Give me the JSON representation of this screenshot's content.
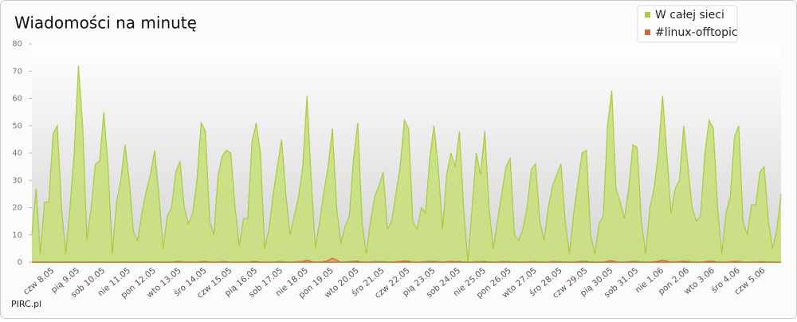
{
  "chart_data": {
    "type": "area",
    "title": "Wiadomości na minutę",
    "footer": "PIRC.pl",
    "ylim": [
      0,
      80
    ],
    "yticks": [
      0,
      10,
      20,
      30,
      40,
      50,
      60,
      70,
      80
    ],
    "legend": "top-right",
    "categories": [
      null,
      null,
      null,
      null,
      null,
      "czw 8.05",
      null,
      null,
      null,
      null,
      null,
      "pią 9.05",
      null,
      null,
      null,
      null,
      null,
      "sob 10.05",
      null,
      null,
      null,
      null,
      null,
      "nie 11.05",
      null,
      null,
      null,
      null,
      null,
      "pon 12.05",
      null,
      null,
      null,
      null,
      null,
      "wto 13.05",
      null,
      null,
      null,
      null,
      null,
      "śro 14.05",
      null,
      null,
      null,
      null,
      null,
      "czw 15.05",
      null,
      null,
      null,
      null,
      null,
      "pią 16.05",
      null,
      null,
      null,
      null,
      null,
      "sob 17.05",
      null,
      null,
      null,
      null,
      null,
      "nie 18.05",
      null,
      null,
      null,
      null,
      null,
      "pon 19.05",
      null,
      null,
      null,
      null,
      null,
      "wto 20.05",
      null,
      null,
      null,
      null,
      null,
      "śro 21.05",
      null,
      null,
      null,
      null,
      null,
      "czw 22.05",
      null,
      null,
      null,
      null,
      null,
      "pią 23.05",
      null,
      null,
      null,
      null,
      null,
      "sob 24.05",
      null,
      null,
      null,
      null,
      null,
      "nie 25.05",
      null,
      null,
      null,
      null,
      null,
      "pon 26.05",
      null,
      null,
      null,
      null,
      null,
      "wto 27.05",
      null,
      null,
      null,
      null,
      null,
      "śro 28.05",
      null,
      null,
      null,
      null,
      null,
      "czw 29.05",
      null,
      null,
      null,
      null,
      null,
      "pią 30.05",
      null,
      null,
      null,
      null,
      null,
      "sob 31.05",
      null,
      null,
      null,
      null,
      null,
      "nie 1.06",
      null,
      null,
      null,
      null,
      null,
      "pon 2.06",
      null,
      null,
      null,
      null,
      null,
      "wto 3.06",
      null,
      null,
      null,
      null,
      null,
      "śro 4.06",
      null,
      null,
      null,
      null,
      null,
      "czw 5.06",
      null,
      null,
      null,
      null
    ],
    "series": [
      {
        "name": "W całej sieci",
        "color": "#a8cc3c",
        "fill": "#c8df7c",
        "values": [
          10,
          27,
          3,
          22,
          22,
          47,
          50,
          20,
          3,
          20,
          40,
          72,
          50,
          8,
          20,
          36,
          37,
          55,
          35,
          3,
          22,
          30,
          43,
          30,
          11,
          8,
          18,
          26,
          32,
          41,
          25,
          5,
          17,
          20,
          33,
          37,
          20,
          14,
          18,
          30,
          51,
          48,
          15,
          10,
          32,
          39,
          41,
          40,
          20,
          6,
          16,
          16,
          44,
          51,
          40,
          5,
          12,
          25,
          35,
          45,
          25,
          10,
          17,
          24,
          35,
          61,
          30,
          5,
          15,
          26,
          35,
          49,
          20,
          7,
          13,
          17,
          38,
          51,
          15,
          3,
          15,
          24,
          28,
          33,
          12,
          15,
          25,
          35,
          52,
          49,
          15,
          12,
          20,
          18,
          38,
          50,
          35,
          12,
          32,
          40,
          35,
          48,
          20,
          0,
          20,
          40,
          32,
          48,
          20,
          5,
          15,
          25,
          35,
          38,
          10,
          8,
          12,
          20,
          34,
          36,
          15,
          8,
          20,
          28,
          32,
          36,
          15,
          3,
          18,
          29,
          40,
          41,
          10,
          3,
          14,
          17,
          50,
          63,
          27,
          22,
          16,
          27,
          43,
          42,
          15,
          3,
          20,
          27,
          40,
          61,
          40,
          18,
          27,
          30,
          50,
          35,
          20,
          15,
          17,
          40,
          52,
          49,
          20,
          3,
          18,
          24,
          46,
          50,
          15,
          10,
          21,
          21,
          33,
          35,
          15,
          5,
          12,
          25
        ]
      },
      {
        "name": "#linux-offtopic",
        "color": "#d2693a",
        "fill": "#e3a07a",
        "values": [
          0,
          0,
          0,
          0,
          0,
          0,
          0,
          0,
          0,
          0,
          0,
          0,
          0,
          0,
          0,
          0,
          0,
          0,
          0,
          0,
          0,
          0,
          0,
          0,
          0,
          0,
          0,
          0,
          0,
          0,
          0,
          0,
          0,
          0,
          0.2,
          0.2,
          0,
          0,
          0,
          0,
          0.2,
          0.3,
          0,
          0,
          0,
          0.2,
          0.2,
          0,
          0,
          0,
          0,
          0,
          0.2,
          0.3,
          0,
          0,
          0,
          0,
          0.2,
          0.2,
          0,
          0,
          0,
          0.2,
          0.3,
          0.8,
          0.3,
          0,
          0,
          0.3,
          0.6,
          1.5,
          0.8,
          0,
          0,
          0.2,
          0.3,
          0.4,
          0,
          0,
          0,
          0.2,
          0.2,
          0.2,
          0,
          0,
          0.2,
          0.3,
          0.5,
          0.4,
          0,
          0,
          0,
          0.2,
          0.3,
          0.3,
          0.2,
          0,
          0.2,
          0.3,
          0.2,
          0.3,
          0,
          0,
          0,
          0.2,
          0.2,
          0.3,
          0,
          0,
          0,
          0.2,
          0.2,
          0.2,
          0,
          0,
          0,
          0,
          0.2,
          0.2,
          0,
          0,
          0,
          0.2,
          0.2,
          0.2,
          0,
          0,
          0,
          0.2,
          0.3,
          0.3,
          0,
          0,
          0,
          0,
          0.4,
          0.6,
          0.2,
          0,
          0,
          0.2,
          0.3,
          0.3,
          0,
          0,
          0,
          0.2,
          0.4,
          0.8,
          0.5,
          0,
          0.2,
          0.2,
          0.4,
          0.3,
          0,
          0,
          0,
          0.2,
          0.4,
          0.4,
          0,
          0,
          0,
          0.2,
          0.3,
          0.3,
          0,
          0,
          0,
          0,
          0.2,
          0.2,
          0,
          0,
          0,
          0
        ]
      }
    ]
  }
}
